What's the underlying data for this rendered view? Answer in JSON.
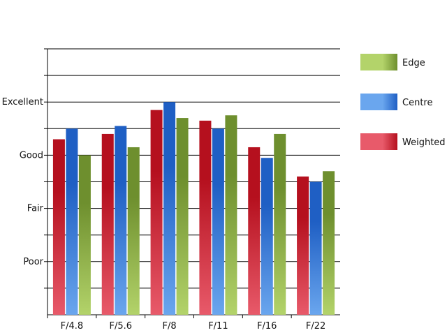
{
  "chart_data": {
    "type": "bar",
    "categories": [
      "F/4.8",
      "F/5.6",
      "F/8",
      "F/11",
      "F/16",
      "F/22"
    ],
    "y_ticks": [
      {
        "value": 2,
        "label": "Poor"
      },
      {
        "value": 4,
        "label": "Fair"
      },
      {
        "value": 6,
        "label": "Good"
      },
      {
        "value": 8,
        "label": "Excellent"
      }
    ],
    "ylim": [
      0,
      10
    ],
    "grid": true,
    "legend_position": "right",
    "series": [
      {
        "name": "Weighted",
        "values": [
          6.6,
          6.8,
          7.7,
          7.3,
          6.3,
          5.2
        ],
        "color_dark": "#b5101e",
        "color_light": "#e85a6a"
      },
      {
        "name": "Centre",
        "values": [
          7.0,
          7.1,
          8.0,
          7.0,
          5.9,
          5.0
        ],
        "color_dark": "#1f5fc4",
        "color_light": "#6aa6ee"
      },
      {
        "name": "Edge",
        "values": [
          6.0,
          6.3,
          7.4,
          7.5,
          6.8,
          5.4
        ],
        "color_dark": "#6e8f2e",
        "color_light": "#b3d36a"
      }
    ],
    "legend_order": [
      "Edge",
      "Centre",
      "Weighted"
    ]
  }
}
